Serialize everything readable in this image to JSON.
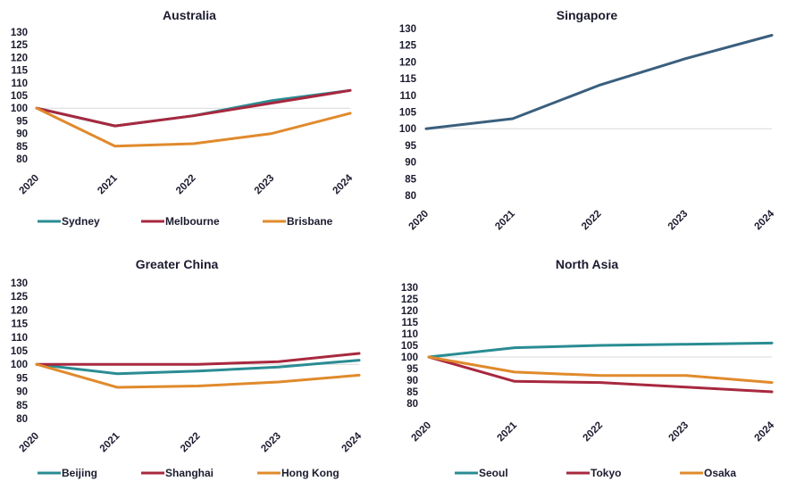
{
  "colors": {
    "teal": "#2a8c93",
    "crimson": "#a8283f",
    "orange": "#e08a2c",
    "slate": "#3a5f7d",
    "grid": "#d9d9d9",
    "text": "#1b1b2f"
  },
  "chart_data": [
    {
      "type": "line",
      "title": "Australia",
      "categories": [
        "2020",
        "2021",
        "2022",
        "2023",
        "2024"
      ],
      "y_ticks": [
        "130",
        "125",
        "120",
        "115",
        "110",
        "105",
        "100",
        "95",
        "90",
        "85",
        "80"
      ],
      "ylim": [
        80,
        130
      ],
      "grid": "line at 100",
      "legend": "bottom",
      "series": [
        {
          "name": "Sydney",
          "color": "#2a8c93",
          "values": [
            100,
            93,
            97,
            103,
            107
          ]
        },
        {
          "name": "Melbourne",
          "color": "#a8283f",
          "values": [
            100,
            93,
            97,
            102,
            107
          ]
        },
        {
          "name": "Brisbane",
          "color": "#e08a2c",
          "values": [
            100,
            85,
            86,
            90,
            98
          ]
        }
      ]
    },
    {
      "type": "line",
      "title": "Singapore",
      "categories": [
        "2020",
        "2021",
        "2022",
        "2023",
        "2024"
      ],
      "y_ticks": [
        "130",
        "125",
        "120",
        "115",
        "110",
        "105",
        "100",
        "95",
        "90",
        "85",
        "80"
      ],
      "ylim": [
        80,
        130
      ],
      "grid": "line at 100",
      "legend": "none",
      "series": [
        {
          "color": "#3a5f7d",
          "values": [
            100,
            103,
            113,
            121,
            128
          ]
        }
      ]
    },
    {
      "type": "line",
      "title": "Greater China",
      "categories": [
        "2020",
        "2021",
        "2022",
        "2023",
        "2024"
      ],
      "y_ticks": [
        "130",
        "125",
        "120",
        "115",
        "110",
        "105",
        "100",
        "95",
        "90",
        "85",
        "80"
      ],
      "ylim": [
        80,
        130
      ],
      "grid": "line at 100",
      "legend": "bottom",
      "series": [
        {
          "name": "Beijing",
          "color": "#2a8c93",
          "values": [
            100,
            96.5,
            97.5,
            99,
            101.5
          ]
        },
        {
          "name": "Shanghai",
          "color": "#a8283f",
          "values": [
            100,
            100,
            100,
            101,
            104
          ]
        },
        {
          "name": "Hong Kong",
          "color": "#e08a2c",
          "values": [
            100,
            91.5,
            92,
            93.5,
            96
          ]
        }
      ]
    },
    {
      "type": "line",
      "title": "North Asia",
      "categories": [
        "2020",
        "2021",
        "2022",
        "2023",
        "2024"
      ],
      "y_ticks": [
        "130",
        "125",
        "120",
        "115",
        "110",
        "105",
        "100",
        "95",
        "90",
        "85",
        "80"
      ],
      "ylim": [
        80,
        130
      ],
      "grid": "line at 100",
      "legend": "bottom",
      "series": [
        {
          "name": "Seoul",
          "color": "#2a8c93",
          "values": [
            100,
            104,
            105,
            105.5,
            106
          ]
        },
        {
          "name": "Tokyo",
          "color": "#a8283f",
          "values": [
            100,
            89.5,
            89,
            87,
            85
          ]
        },
        {
          "name": "Osaka",
          "color": "#e08a2c",
          "values": [
            100,
            93.5,
            92,
            92,
            89
          ]
        }
      ]
    }
  ]
}
